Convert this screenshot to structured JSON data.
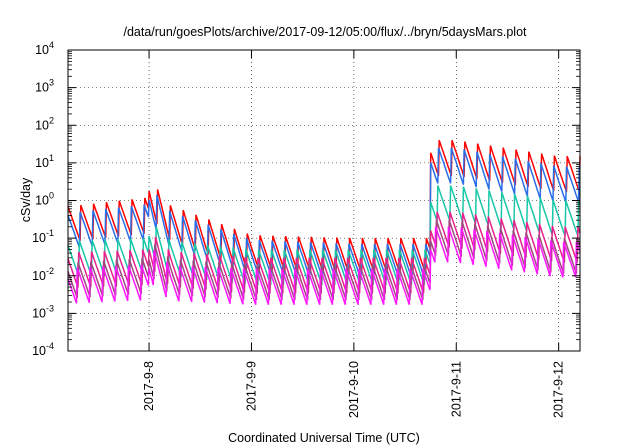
{
  "chart_data": {
    "type": "line",
    "title": "/data/run/goesPlots/archive/2017-09-12/05:00/flux/../bryn/5daysMars.plot",
    "xlabel": "Coordinated Universal Time (UTC)",
    "ylabel": "cSv/day",
    "y_scale": "log",
    "xlim": [
      "2017-09-07T05:00",
      "2017-09-12T05:00"
    ],
    "ylim": [
      0.0001,
      10000
    ],
    "x_ticks": [
      "2017-9-8",
      "2017-9-9",
      "2017-9-10",
      "2017-9-11",
      "2017-9-12"
    ],
    "y_ticks": [
      {
        "value": 0.0001,
        "mantissa": "10",
        "exp": "-4"
      },
      {
        "value": 0.001,
        "mantissa": "10",
        "exp": "-3"
      },
      {
        "value": 0.01,
        "mantissa": "10",
        "exp": "-2"
      },
      {
        "value": 0.1,
        "mantissa": "10",
        "exp": "-1"
      },
      {
        "value": 1,
        "mantissa": "10",
        "exp": "0"
      },
      {
        "value": 10,
        "mantissa": "10",
        "exp": "1"
      },
      {
        "value": 100,
        "mantissa": "10",
        "exp": "2"
      },
      {
        "value": 1000,
        "mantissa": "10",
        "exp": "3"
      },
      {
        "value": 10000,
        "mantissa": "10",
        "exp": "4"
      }
    ],
    "grid": true,
    "legend": "none",
    "series_description": "Sawtooth flux-derived dose-rate series; peaks roughly every 3 hours; step increase near 2017-09-10 18:00",
    "series": [
      {
        "color": "#ff0000",
        "base_levels": [
          {
            "x": "2017-09-07",
            "y": 0.6
          },
          {
            "x": "2017-09-08",
            "y": 1.2
          },
          {
            "x": "2017-09-09",
            "y": 0.12
          },
          {
            "x": "2017-09-10",
            "y": 0.1
          },
          {
            "x": "2017-09-11",
            "y": 40
          },
          {
            "x": "2017-09-12",
            "y": 15
          }
        ]
      },
      {
        "color": "#2a6ee8",
        "base_levels": [
          {
            "x": "2017-09-07",
            "y": 0.4
          },
          {
            "x": "2017-09-08",
            "y": 0.8
          },
          {
            "x": "2017-09-09",
            "y": 0.09
          },
          {
            "x": "2017-09-10",
            "y": 0.07
          },
          {
            "x": "2017-09-11",
            "y": 25
          },
          {
            "x": "2017-09-12",
            "y": 8
          }
        ]
      },
      {
        "color": "#18c7a8",
        "base_levels": [
          {
            "x": "2017-09-07",
            "y": 0.08
          },
          {
            "x": "2017-09-08",
            "y": 0.1
          },
          {
            "x": "2017-09-09",
            "y": 0.05
          },
          {
            "x": "2017-09-10",
            "y": 0.05
          },
          {
            "x": "2017-09-11",
            "y": 2.5
          },
          {
            "x": "2017-09-12",
            "y": 1
          }
        ]
      },
      {
        "color": "#e8208c",
        "base_levels": [
          {
            "x": "2017-09-07",
            "y": 0.04
          },
          {
            "x": "2017-09-08",
            "y": 0.05
          },
          {
            "x": "2017-09-09",
            "y": 0.03
          },
          {
            "x": "2017-09-10",
            "y": 0.03
          },
          {
            "x": "2017-09-11",
            "y": 0.5
          },
          {
            "x": "2017-09-12",
            "y": 0.2
          }
        ]
      },
      {
        "color": "#a04880",
        "base_levels": [
          {
            "x": "2017-09-07",
            "y": 0.02
          },
          {
            "x": "2017-09-08",
            "y": 0.03
          },
          {
            "x": "2017-09-09",
            "y": 0.02
          },
          {
            "x": "2017-09-10",
            "y": 0.02
          },
          {
            "x": "2017-09-11",
            "y": 0.3
          },
          {
            "x": "2017-09-12",
            "y": 0.1
          }
        ]
      },
      {
        "color": "#ff18ff",
        "base_levels": [
          {
            "x": "2017-09-07",
            "y": 0.015
          },
          {
            "x": "2017-09-08",
            "y": 0.02
          },
          {
            "x": "2017-09-09",
            "y": 0.015
          },
          {
            "x": "2017-09-10",
            "y": 0.015
          },
          {
            "x": "2017-09-11",
            "y": 0.2
          },
          {
            "x": "2017-09-12",
            "y": 0.08
          }
        ]
      }
    ]
  }
}
